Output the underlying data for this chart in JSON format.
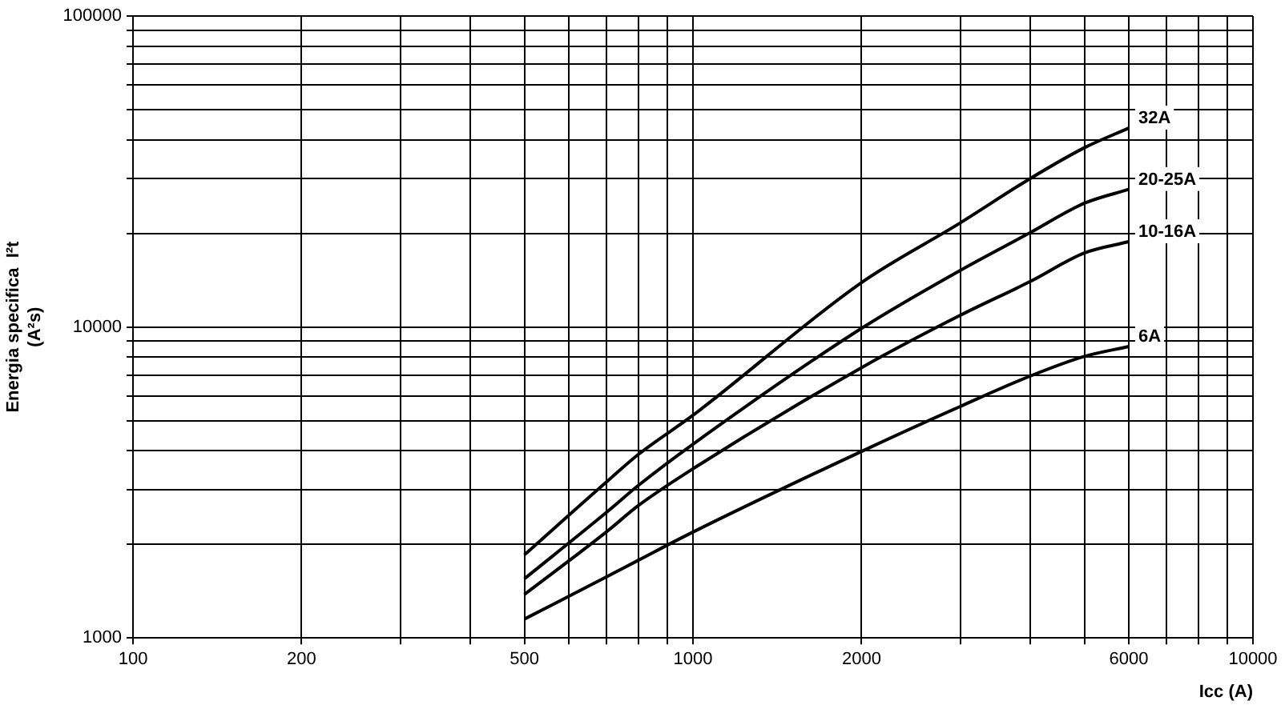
{
  "chart_data": {
    "type": "line",
    "xlabel": "Icc (A)",
    "ylabel": "Energia specifica  I²t\n(A²s)",
    "log": "xy",
    "grid": true,
    "legend": false,
    "marker": "none",
    "line_style": "solid",
    "x": [
      500,
      700,
      800,
      1000,
      2000,
      3000,
      4000,
      5000,
      6000
    ],
    "xlim": [
      100,
      10000
    ],
    "ylim": [
      1000,
      100000
    ],
    "xticks": [
      100,
      200,
      {
        "value": 300,
        "label": null
      },
      {
        "value": 400,
        "label": null
      },
      500,
      {
        "value": 600,
        "label": null
      },
      {
        "value": 700,
        "label": null
      },
      {
        "value": 800,
        "label": null
      },
      {
        "value": 900,
        "label": null
      },
      1000,
      2000,
      {
        "value": 3000,
        "label": null
      },
      {
        "value": 4000,
        "label": null
      },
      {
        "value": 5000,
        "label": null
      },
      6000,
      {
        "value": 7000,
        "label": null
      },
      {
        "value": 8000,
        "label": null
      },
      {
        "value": 9000,
        "label": null
      },
      10000
    ],
    "yticks": [
      1000,
      {
        "value": 2000,
        "label": null
      },
      {
        "value": 3000,
        "label": null
      },
      {
        "value": 4000,
        "label": null
      },
      {
        "value": 5000,
        "label": null
      },
      {
        "value": 6000,
        "label": null
      },
      {
        "value": 7000,
        "label": null
      },
      {
        "value": 8000,
        "label": null
      },
      {
        "value": 9000,
        "label": null
      },
      10000,
      {
        "value": 20000,
        "label": null
      },
      {
        "value": 30000,
        "label": null
      },
      {
        "value": 40000,
        "label": null
      },
      {
        "value": 50000,
        "label": null
      },
      {
        "value": 60000,
        "label": null
      },
      {
        "value": 70000,
        "label": null
      },
      {
        "value": 80000,
        "label": null
      },
      {
        "value": 90000,
        "label": null
      },
      100000
    ],
    "series": [
      {
        "name": "32A",
        "color": "#000000",
        "values": [
          1850,
          3170,
          3900,
          5200,
          13900,
          21600,
          30000,
          37700,
          43600
        ]
      },
      {
        "name": "20-25A",
        "color": "#000000",
        "values": [
          1550,
          2530,
          3100,
          4200,
          9900,
          15200,
          20100,
          25000,
          27700
        ]
      },
      {
        "name": "10-16A",
        "color": "#000000",
        "values": [
          1380,
          2190,
          2670,
          3500,
          7400,
          10900,
          14000,
          17300,
          18800
        ]
      },
      {
        "name": "6A",
        "color": "#000000",
        "values": [
          1150,
          1570,
          1780,
          2190,
          3980,
          5550,
          6950,
          8040,
          8650
        ]
      }
    ]
  }
}
